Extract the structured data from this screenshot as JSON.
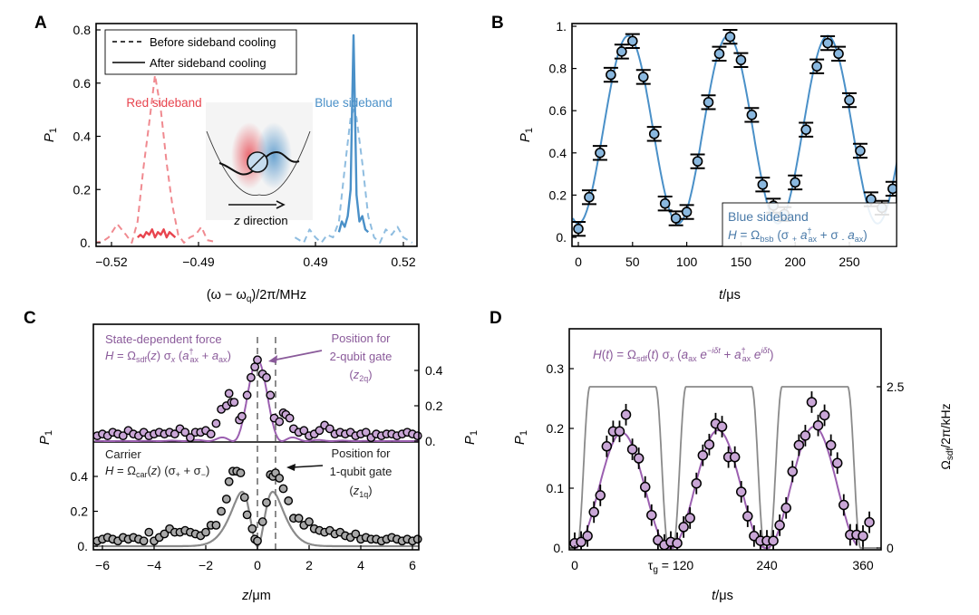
{
  "colors": {
    "red": "#e8454f",
    "red_light": "#f08a90",
    "blue": "#4a90c8",
    "blue_light": "#8fbde0",
    "blue_marker": "#8ab8df",
    "purple": "#9b5fb0",
    "purple_text": "#8a5a9a",
    "purple_marker": "#c9a6d6",
    "gray_line": "#8a8a8a",
    "gray_marker": "#a8a8a8",
    "dash_gray": "#808080"
  },
  "chart_data": [
    {
      "panel": "A",
      "type": "line",
      "panel_label": "A",
      "xlabel": "(ω − ω_q)/2π/MHz",
      "ylabel": "P1",
      "xticks": [
        "−0.52",
        "−0.49",
        "0.49",
        "0.52"
      ],
      "yticks": [
        "0.",
        "0.2",
        "0.4",
        "0.6",
        "0.8"
      ],
      "ylim": [
        0,
        0.8
      ],
      "x_axis_broken": true,
      "xlim_left": [
        -0.526,
        -0.483
      ],
      "xlim_right": [
        0.483,
        0.523
      ],
      "legend": {
        "placement": "top-left",
        "entries": [
          {
            "label": "Before sideband cooling",
            "style": "dashed"
          },
          {
            "label": "After sideband cooling",
            "style": "solid"
          }
        ]
      },
      "annotations": {
        "red_label": "Red sideband",
        "blue_label": "Blue sideband",
        "inset_label": "z direction"
      },
      "series": [
        {
          "name": "Red sideband before cooling",
          "style": "dashed",
          "color": "red_light",
          "x": [
            -0.526,
            -0.523,
            -0.521,
            -0.518,
            -0.515,
            -0.513,
            -0.511,
            -0.509,
            -0.507,
            -0.505,
            -0.503,
            -0.501,
            -0.499,
            -0.497,
            -0.495,
            -0.493,
            -0.491,
            -0.489,
            -0.487,
            -0.485
          ],
          "y": [
            0.0,
            0.005,
            0.02,
            0.07,
            0.03,
            0.0,
            0.08,
            0.28,
            0.45,
            0.63,
            0.5,
            0.3,
            0.14,
            0.03,
            0.0,
            0.02,
            0.03,
            0.06,
            0.01,
            0.005
          ]
        },
        {
          "name": "Red sideband after cooling",
          "style": "solid",
          "color": "red",
          "x": [
            -0.511,
            -0.51,
            -0.509,
            -0.508,
            -0.507,
            -0.506,
            -0.505,
            -0.504,
            -0.503,
            -0.502,
            -0.501,
            -0.5,
            -0.499,
            -0.498
          ],
          "y": [
            0.02,
            0.03,
            0.02,
            0.04,
            0.03,
            0.05,
            0.02,
            0.04,
            0.03,
            0.05,
            0.02,
            0.04,
            0.03,
            0.02
          ]
        },
        {
          "name": "Blue sideband before cooling",
          "style": "dashed",
          "color": "blue_light",
          "x": [
            0.483,
            0.486,
            0.488,
            0.49,
            0.492,
            0.494,
            0.496,
            0.498,
            0.5,
            0.502,
            0.503,
            0.504,
            0.506,
            0.508,
            0.51,
            0.512,
            0.514,
            0.516,
            0.518,
            0.52,
            0.523
          ],
          "y": [
            0.02,
            0.0,
            0.05,
            0.02,
            0.0,
            0.03,
            0.02,
            0.08,
            0.28,
            0.47,
            0.5,
            0.47,
            0.3,
            0.1,
            0.02,
            0.0,
            0.05,
            0.03,
            0.06,
            0.02,
            0.0
          ]
        },
        {
          "name": "Blue sideband after cooling",
          "style": "solid",
          "color": "blue",
          "x": [
            0.498,
            0.499,
            0.5,
            0.501,
            0.502,
            0.5025,
            0.503,
            0.5035,
            0.504,
            0.505,
            0.506,
            0.507,
            0.508
          ],
          "y": [
            0.04,
            0.08,
            0.06,
            0.1,
            0.2,
            0.5,
            0.78,
            0.5,
            0.18,
            0.08,
            0.1,
            0.05,
            0.04
          ]
        }
      ]
    },
    {
      "panel": "B",
      "type": "scatter",
      "panel_label": "B",
      "xlabel": "t/μs",
      "ylabel": "P1",
      "xticks": [
        "0",
        "50",
        "100",
        "150",
        "200",
        "250"
      ],
      "yticks": [
        "0.",
        "0.2",
        "0.4",
        "0.6",
        "0.8",
        "1."
      ],
      "xlim": [
        -5,
        295
      ],
      "ylim": [
        0,
        1.0
      ],
      "legend": {
        "placement": "bottom-right",
        "title": "Blue sideband",
        "formula": "H = Ω_bsb (σ₊ a†_ax + σ₋ a_ax)"
      },
      "series": [
        {
          "name": "data",
          "color": "blue_marker",
          "x": [
            0,
            10,
            20,
            30,
            40,
            50,
            60,
            70,
            80,
            90,
            100,
            110,
            120,
            130,
            140,
            150,
            160,
            170,
            180,
            190,
            200,
            210,
            220,
            230,
            240,
            250,
            260,
            270,
            280,
            290
          ],
          "y": [
            0.04,
            0.19,
            0.4,
            0.77,
            0.88,
            0.93,
            0.76,
            0.49,
            0.16,
            0.09,
            0.12,
            0.36,
            0.64,
            0.87,
            0.95,
            0.84,
            0.58,
            0.25,
            0.15,
            0.11,
            0.26,
            0.51,
            0.81,
            0.92,
            0.87,
            0.65,
            0.41,
            0.18,
            0.14,
            0.23
          ],
          "err": 0.02
        },
        {
          "name": "fit",
          "type": "line",
          "color": "blue",
          "fit": {
            "period_us": 92,
            "amplitude": 0.445,
            "offset": 0.51,
            "phase_peak_us": 46
          }
        }
      ]
    },
    {
      "panel": "C",
      "type": "scatter",
      "panel_label": "C",
      "xlabel": "z/μm",
      "ylabel": "P1",
      "ylabel_right": "P1",
      "xticks": [
        "−6",
        "−4",
        "−2",
        "0",
        "2",
        "4",
        "6"
      ],
      "xlim": [
        -6.25,
        6.25
      ],
      "upper": {
        "title": "State-dependent force",
        "formula": "H = Ω_sdf(z) σ_x (a†_ax + a_ax)",
        "yticks_right": [
          "0.",
          "0.2",
          "0.4"
        ],
        "ylim": [
          0,
          0.55
        ],
        "annotation": "Position for 2-qubit gate (z_2q)",
        "marker_color": "purple_marker",
        "line_color": "purple"
      },
      "lower": {
        "title": "Carrier",
        "formula": "H = Ω_car(z) (σ₊ + σ₋)",
        "yticks_left": [
          "0.",
          "0.2",
          "0.4"
        ],
        "ylim": [
          0,
          0.55
        ],
        "annotation": "Position for 1-qubit gate (z_1q)",
        "marker_color": "gray_marker",
        "line_color": "gray_line"
      },
      "vlines_um": [
        0,
        0.7
      ],
      "series": [
        {
          "name": "sdf data",
          "x": [
            -6.2,
            -6.0,
            -5.8,
            -5.6,
            -5.4,
            -5.2,
            -5.0,
            -4.8,
            -4.6,
            -4.4,
            -4.2,
            -4.0,
            -3.8,
            -3.6,
            -3.4,
            -3.2,
            -3.0,
            -2.8,
            -2.6,
            -2.4,
            -2.2,
            -2.0,
            -1.8,
            -1.6,
            -1.4,
            -1.2,
            -1.1,
            -1.0,
            -0.9,
            -0.7,
            -0.6,
            -0.4,
            -0.25,
            -0.1,
            0.0,
            0.2,
            0.35,
            0.5,
            0.65,
            0.85,
            1.0,
            1.1,
            1.25,
            1.4,
            1.6,
            1.8,
            2.0,
            2.2,
            2.4,
            2.6,
            2.8,
            3.0,
            3.2,
            3.4,
            3.6,
            3.8,
            4.0,
            4.2,
            4.4,
            4.6,
            4.8,
            5.0,
            5.2,
            5.4,
            5.6,
            5.8,
            6.0,
            6.2
          ],
          "y": [
            0.03,
            0.04,
            0.03,
            0.05,
            0.04,
            0.03,
            0.06,
            0.04,
            0.03,
            0.05,
            0.03,
            0.04,
            0.05,
            0.04,
            0.05,
            0.04,
            0.07,
            0.05,
            0.02,
            0.05,
            0.05,
            0.06,
            0.04,
            0.1,
            0.18,
            0.2,
            0.27,
            0.22,
            0.22,
            0.12,
            0.14,
            0.26,
            0.36,
            0.42,
            0.46,
            0.38,
            0.36,
            0.26,
            0.13,
            0.11,
            0.16,
            0.15,
            0.13,
            0.07,
            0.05,
            0.06,
            0.03,
            0.04,
            0.06,
            0.09,
            0.07,
            0.04,
            0.05,
            0.04,
            0.05,
            0.03,
            0.04,
            0.05,
            0.02,
            0.04,
            0.03,
            0.04,
            0.04,
            0.03,
            0.04,
            0.05,
            0.04,
            0.03
          ]
        },
        {
          "name": "carrier data",
          "x": [
            -6.2,
            -6.0,
            -5.8,
            -5.6,
            -5.4,
            -5.2,
            -5.0,
            -4.8,
            -4.6,
            -4.4,
            -4.2,
            -4.0,
            -3.8,
            -3.6,
            -3.4,
            -3.2,
            -3.0,
            -2.8,
            -2.6,
            -2.4,
            -2.2,
            -2.0,
            -1.8,
            -1.6,
            -1.4,
            -1.2,
            -1.1,
            -0.95,
            -0.8,
            -0.65,
            -0.5,
            -0.4,
            -0.2,
            -0.1,
            0.0,
            0.2,
            0.35,
            0.5,
            0.6,
            0.7,
            0.85,
            1.0,
            1.2,
            1.4,
            1.6,
            1.8,
            2.0,
            2.2,
            2.4,
            2.6,
            2.8,
            3.0,
            3.2,
            3.4,
            3.6,
            3.8,
            4.0,
            4.2,
            4.4,
            4.6,
            4.8,
            5.0,
            5.2,
            5.4,
            5.6,
            5.8,
            6.0,
            6.2
          ],
          "y": [
            0.03,
            0.04,
            0.05,
            0.04,
            0.03,
            0.05,
            0.04,
            0.05,
            0.04,
            0.03,
            0.08,
            0.03,
            0.05,
            0.07,
            0.1,
            0.08,
            0.08,
            0.09,
            0.08,
            0.07,
            0.06,
            0.08,
            0.12,
            0.12,
            0.2,
            0.27,
            0.37,
            0.43,
            0.43,
            0.42,
            0.28,
            0.18,
            0.1,
            0.04,
            0.03,
            0.14,
            0.25,
            0.41,
            0.4,
            0.42,
            0.39,
            0.33,
            0.26,
            0.16,
            0.16,
            0.12,
            0.14,
            0.1,
            0.09,
            0.08,
            0.09,
            0.07,
            0.08,
            0.06,
            0.05,
            0.07,
            0.04,
            0.05,
            0.04,
            0.04,
            0.03,
            0.04,
            0.05,
            0.04,
            0.03,
            0.04,
            0.03,
            0.04
          ]
        }
      ]
    },
    {
      "panel": "D",
      "type": "scatter",
      "panel_label": "D",
      "xlabel": "t/μs",
      "ylabel": "P1",
      "ylabel_right": "Ω_sdf/2π/kHz",
      "formula": "H(t) = Ω_sdf(t) σ_x (a_ax e^(−iδt) + a†_ax e^(iδt))",
      "xticks": [
        "0",
        "τ_g = 120",
        "240",
        "360"
      ],
      "xtick_values": [
        0,
        120,
        240,
        360
      ],
      "yticks": [
        "0.",
        "0.1",
        "0.2",
        "0.3"
      ],
      "yticks_right": [
        "0",
        "2.5"
      ],
      "xlim": [
        -3,
        378
      ],
      "ylim": [
        0,
        0.37
      ],
      "ylim_right": [
        0,
        3.4
      ],
      "series": [
        {
          "name": "data",
          "x": [
            0,
            8,
            16,
            24,
            32,
            40,
            48,
            56,
            64,
            72,
            80,
            88,
            96,
            104,
            112,
            120,
            128,
            136,
            144,
            152,
            160,
            168,
            176,
            184,
            192,
            200,
            208,
            216,
            224,
            232,
            240,
            248,
            256,
            264,
            272,
            280,
            288,
            296,
            304,
            312,
            320,
            328,
            336,
            344,
            352,
            360,
            368
          ],
          "y": [
            0.008,
            0.01,
            0.02,
            0.06,
            0.088,
            0.17,
            0.195,
            0.195,
            0.223,
            0.165,
            0.15,
            0.102,
            0.055,
            0.013,
            0.005,
            0.01,
            0.008,
            0.035,
            0.05,
            0.108,
            0.155,
            0.173,
            0.208,
            0.203,
            0.152,
            0.152,
            0.094,
            0.053,
            0.02,
            0.012,
            0.012,
            0.012,
            0.038,
            0.067,
            0.128,
            0.172,
            0.188,
            0.244,
            0.205,
            0.222,
            0.172,
            0.142,
            0.072,
            0.022,
            0.022,
            0.02,
            0.043
          ],
          "err": 0.018
        },
        {
          "name": "fit",
          "type": "line",
          "period_us": 120,
          "peaks": [
            0.193,
            0.197,
            0.203
          ]
        },
        {
          "name": "Omega_sdf pulse",
          "type": "line",
          "axis": "right",
          "plateau_kHz": 2.5,
          "pulses_us": [
            [
              3,
              117
            ],
            [
              123,
              237
            ],
            [
              243,
              357
            ]
          ],
          "ramp_us": 16
        }
      ]
    }
  ]
}
